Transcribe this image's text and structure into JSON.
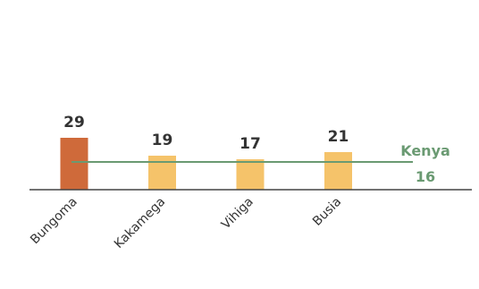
{
  "chart_data": {
    "type": "bar",
    "title": "",
    "xlabel": "",
    "ylabel": "",
    "categories": [
      "Bungoma",
      "Kakamega",
      "Vihiga",
      "Busia"
    ],
    "values": [
      29,
      19,
      17,
      21
    ],
    "ylim": [
      0,
      60
    ],
    "grid": false,
    "bar_colors": [
      "#cf6a3a",
      "#f5c36a",
      "#f5c36a",
      "#f5c36a"
    ],
    "reference_line": {
      "label": "Kenya",
      "value_label": "16",
      "value": 16,
      "color": "#6a9a72"
    }
  }
}
